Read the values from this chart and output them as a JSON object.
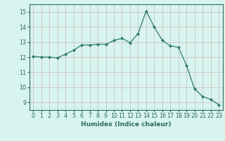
{
  "x": [
    0,
    1,
    2,
    3,
    4,
    5,
    6,
    7,
    8,
    9,
    10,
    11,
    12,
    13,
    14,
    15,
    16,
    17,
    18,
    19,
    20,
    21,
    22,
    23
  ],
  "y": [
    12.05,
    12.0,
    12.0,
    11.95,
    12.2,
    12.45,
    12.8,
    12.8,
    12.85,
    12.85,
    13.1,
    13.25,
    12.95,
    13.55,
    15.05,
    14.0,
    13.1,
    12.75,
    12.65,
    11.45,
    9.9,
    9.4,
    9.2,
    8.85
  ],
  "line_color": "#2d7a6e",
  "marker": "D",
  "marker_size": 2.0,
  "bg_color": "#d8f4ee",
  "grid_color": "#c8b8b8",
  "xlabel": "Humidex (Indice chaleur)",
  "xlim": [
    -0.5,
    23.5
  ],
  "ylim": [
    8.5,
    15.5
  ],
  "yticks": [
    9,
    10,
    11,
    12,
    13,
    14,
    15
  ],
  "xticks": [
    0,
    1,
    2,
    3,
    4,
    5,
    6,
    7,
    8,
    9,
    10,
    11,
    12,
    13,
    14,
    15,
    16,
    17,
    18,
    19,
    20,
    21,
    22,
    23
  ],
  "tick_color": "#2d6b60",
  "label_fontsize": 6.5,
  "tick_fontsize": 5.8
}
